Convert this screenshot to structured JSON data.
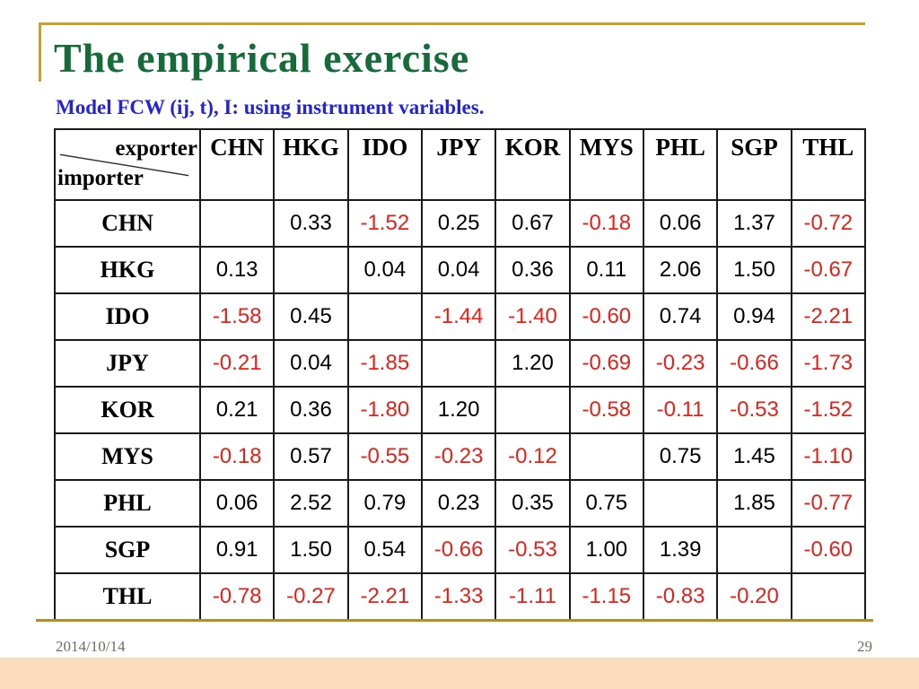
{
  "slide": {
    "title": "The empirical exercise",
    "subtitle": "Model FCW (ij, t), I: using instrument variables.",
    "footer": {
      "date": "2014/10/14",
      "page_number": "29"
    },
    "colors": {
      "title_green": "#156c3a",
      "subtitle_blue": "#2424d6",
      "negative_red": "#e32119",
      "gold_line": "#c9a02c",
      "footer_band": "#fadcbd",
      "footer_text": "#6c6c62"
    }
  },
  "table_corner": {
    "top_right_label": "exporter",
    "bottom_left_label": "importer"
  },
  "chart_data": {
    "type": "table",
    "title": "Model FCW (ij, t), I: using instrument variables.",
    "column_dimension": "exporter",
    "row_dimension": "importer",
    "columns": [
      "CHN",
      "HKG",
      "IDO",
      "JPY",
      "KOR",
      "MYS",
      "PHL",
      "SGP",
      "THL"
    ],
    "rows": [
      {
        "label": "CHN",
        "values": [
          "",
          "0.33",
          "-1.52",
          "0.25",
          "0.67",
          "-0.18",
          "0.06",
          "1.37",
          "-0.72"
        ]
      },
      {
        "label": "HKG",
        "values": [
          "0.13",
          "",
          "0.04",
          "0.04",
          "0.36",
          "0.11",
          "2.06",
          "1.50",
          "-0.67"
        ]
      },
      {
        "label": "IDO",
        "values": [
          "-1.58",
          "0.45",
          "",
          "-1.44",
          "-1.40",
          "-0.60",
          "0.74",
          "0.94",
          "-2.21"
        ]
      },
      {
        "label": "JPY",
        "values": [
          "-0.21",
          "0.04",
          "-1.85",
          "",
          "1.20",
          "-0.69",
          "-0.23",
          "-0.66",
          "-1.73"
        ]
      },
      {
        "label": "KOR",
        "values": [
          "0.21",
          "0.36",
          "-1.80",
          "1.20",
          "",
          "-0.58",
          "-0.11",
          "-0.53",
          "-1.52"
        ]
      },
      {
        "label": "MYS",
        "values": [
          "-0.18",
          "0.57",
          "-0.55",
          "-0.23",
          "-0.12",
          "",
          "0.75",
          "1.45",
          "-1.10"
        ]
      },
      {
        "label": "PHL",
        "values": [
          "0.06",
          "2.52",
          "0.79",
          "0.23",
          "0.35",
          "0.75",
          "",
          "1.85",
          "-0.77"
        ]
      },
      {
        "label": "SGP",
        "values": [
          "0.91",
          "1.50",
          "0.54",
          "-0.66",
          "-0.53",
          "1.00",
          "1.39",
          "",
          "-0.60"
        ]
      },
      {
        "label": "THL",
        "values": [
          "-0.78",
          "-0.27",
          "-2.21",
          "-1.33",
          "-1.11",
          "-1.15",
          "-0.83",
          "-0.20",
          ""
        ]
      }
    ],
    "negative_values_colored_red": true
  }
}
